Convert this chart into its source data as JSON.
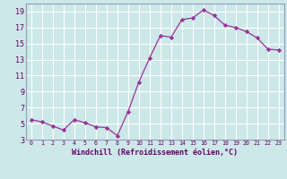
{
  "x": [
    0,
    1,
    2,
    3,
    4,
    5,
    6,
    7,
    8,
    9,
    10,
    11,
    12,
    13,
    14,
    15,
    16,
    17,
    18,
    19,
    20,
    21,
    22,
    23
  ],
  "y": [
    5.5,
    5.2,
    4.7,
    4.2,
    5.5,
    5.1,
    4.6,
    4.5,
    3.5,
    6.5,
    10.2,
    13.2,
    16.0,
    15.8,
    18.0,
    18.2,
    19.2,
    18.5,
    17.3,
    17.0,
    16.5,
    15.7,
    14.3,
    14.2
  ],
  "xlabel": "Windchill (Refroidissement éolien,°C)",
  "ylim": [
    3,
    20
  ],
  "xlim": [
    -0.5,
    23.5
  ],
  "yticks": [
    3,
    5,
    7,
    9,
    11,
    13,
    15,
    17,
    19
  ],
  "xticks": [
    0,
    1,
    2,
    3,
    4,
    5,
    6,
    7,
    8,
    9,
    10,
    11,
    12,
    13,
    14,
    15,
    16,
    17,
    18,
    19,
    20,
    21,
    22,
    23
  ],
  "line_color": "#993399",
  "marker_color": "#993399",
  "bg_color": "#cce8e8",
  "grid_color": "#ffffff",
  "label_color": "#660066",
  "tick_color": "#660066",
  "spine_color": "#9999bb",
  "xlabel_fontsize": 6.0,
  "tick_fontsize_x": 4.8,
  "tick_fontsize_y": 6.0,
  "linewidth": 0.9,
  "markersize": 2.2
}
